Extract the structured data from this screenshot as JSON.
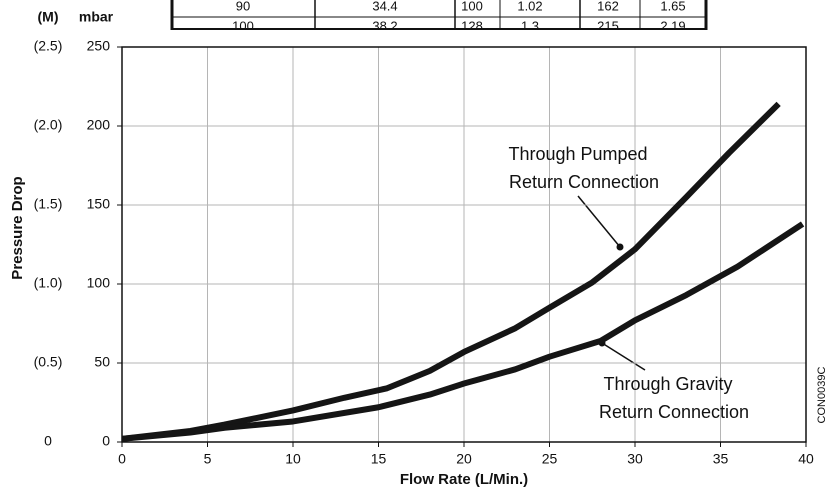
{
  "chart_data": {
    "type": "line",
    "xlabel": "Flow Rate (L/Min.)",
    "ylabel": "Pressure Drop",
    "y_unit_label": "mbar",
    "y2_unit_label": "(M)",
    "side_code": "CON0039C",
    "xlim": [
      0,
      40
    ],
    "xticks": [
      0,
      5,
      10,
      15,
      20,
      25,
      30,
      35,
      40
    ],
    "ylim": [
      0,
      250
    ],
    "yticks": [
      0,
      50,
      100,
      150,
      200,
      250
    ],
    "y2lim": [
      0,
      2.5
    ],
    "y2ticks": [
      0,
      {
        "value": 0.5,
        "label": "(0.5)"
      },
      {
        "value": 1.0,
        "label": "(1.0)"
      },
      {
        "value": 1.5,
        "label": "(1.5)"
      },
      {
        "value": 2.0,
        "label": "(2.0)"
      },
      {
        "value": 2.5,
        "label": "(2.5)"
      }
    ],
    "grid": true,
    "series": [
      {
        "color": "#151515",
        "x": [
          0,
          4,
          6,
          10,
          13,
          15.5,
          18,
          20,
          23,
          25,
          27.5,
          30,
          33,
          35.5,
          38.4
        ],
        "values": [
          2,
          7,
          11,
          20,
          28,
          34,
          45,
          57,
          72,
          85,
          101,
          122,
          155,
          183,
          214
        ]
      },
      {
        "color": "#151515",
        "x": [
          0,
          4,
          6,
          10,
          15,
          18,
          20,
          23,
          25,
          28,
          30,
          33,
          36,
          39.8
        ],
        "values": [
          2,
          6,
          9,
          13,
          22,
          30,
          37,
          46,
          54,
          64,
          77,
          93,
          111,
          138
        ]
      }
    ],
    "annotations": [
      [
        "Through Pumped",
        "Return Connection"
      ],
      [
        "Through Gravity",
        "Return Connection"
      ]
    ]
  },
  "table": {
    "rows": [
      [
        90,
        34.4,
        100,
        1.02,
        162,
        1.65
      ],
      [
        100,
        38.2,
        128,
        1.3,
        215,
        2.19
      ]
    ]
  }
}
